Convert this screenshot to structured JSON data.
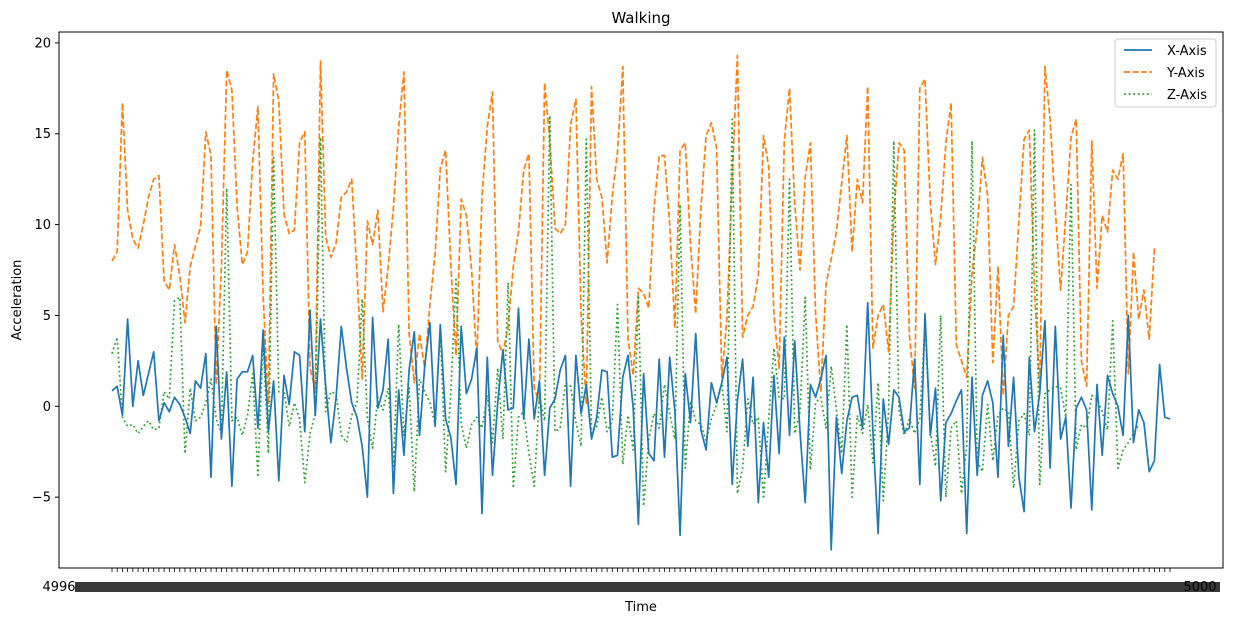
{
  "chart_data": {
    "type": "line",
    "title": "Walking",
    "xlabel": "Time",
    "ylabel": "Acceleration",
    "ylim": [
      -8.9,
      20.6
    ],
    "yticks": [
      -5,
      0,
      5,
      10,
      15,
      20
    ],
    "grid": false,
    "legend_position": "top-right",
    "x_tick_labels_overlapping": true,
    "x_first_label": "4996",
    "x_last_label": "5000",
    "series": [
      {
        "name": "X-Axis",
        "color": "#1f77b4",
        "style": "solid",
        "values": [
          0.85,
          1.1,
          -0.5,
          4.8,
          0.0,
          2.5,
          0.6,
          1.8,
          3.0,
          -0.8,
          0.2,
          -0.3,
          0.5,
          0.1,
          -0.6,
          -1.5,
          1.4,
          1.0,
          2.9,
          -3.9,
          4.4,
          -1.8,
          1.9,
          -4.4,
          1.5,
          1.9,
          1.9,
          2.8,
          -1.2,
          4.2,
          -1.4,
          1.4,
          -4.1,
          1.7,
          0.1,
          3.0,
          2.8,
          -1.4,
          5.3,
          -0.5,
          4.8,
          1.1,
          -2.0,
          0.5,
          4.4,
          2.1,
          0.2,
          -0.6,
          -2.2,
          -5.0,
          4.9,
          -0.1,
          0.9,
          3.7,
          -4.8,
          0.9,
          -2.7,
          2.0,
          4.1,
          -1.6,
          2.2,
          4.6,
          -1.1,
          4.5,
          -0.7,
          -1.7,
          -4.3,
          4.4,
          0.7,
          1.5,
          3.2,
          -5.9,
          2.7,
          -3.8,
          0.2,
          3.1,
          -0.2,
          -0.1,
          5.4,
          -0.7,
          3.7,
          -0.7,
          1.4,
          -3.8,
          -0.1,
          0.4,
          2.0,
          2.8,
          -4.4,
          2.8,
          -0.4,
          1.2,
          -1.8,
          -0.6,
          2.0,
          1.9,
          -2.8,
          -2.7,
          1.6,
          2.8,
          -0.1,
          -6.5,
          1.8,
          -2.6,
          -3.0,
          2.6,
          -2.8,
          2.7,
          -0.3,
          -7.1,
          1.8,
          -0.9,
          4.0,
          -1.3,
          -2.4,
          1.3,
          0.2,
          1.3,
          2.7,
          -4.3,
          0.3,
          2.6,
          -2.2,
          1.6,
          -5.3,
          -0.9,
          -3.9,
          1.7,
          -2.6,
          3.8,
          -1.6,
          3.6,
          -1.4,
          -5.3,
          1.2,
          0.5,
          1.5,
          2.8,
          -7.9,
          -0.6,
          -3.7,
          -0.8,
          0.5,
          0.6,
          -1.2,
          5.7,
          -1.4,
          -7.0,
          0.4,
          -2.1,
          0.9,
          0.5,
          -1.4,
          -1.2,
          2.6,
          -4.3,
          5.1,
          -1.6,
          1.0,
          -5.2,
          -0.9,
          -0.4,
          0.3,
          0.9,
          -7.0,
          1.6,
          -3.8,
          0.6,
          1.4,
          0.2,
          -3.9,
          3.9,
          -2.2,
          1.6,
          -3.9,
          -5.8,
          2.7,
          -1.4,
          0.7,
          4.7,
          -3.4,
          4.4,
          -1.8,
          -0.6,
          -5.6,
          -0.1,
          0.5,
          -0.2,
          -5.7,
          1.2,
          -2.7,
          1.7,
          0.7,
          0.0,
          -1.6,
          5.0,
          -2.0,
          -0.2,
          -0.9,
          -3.6,
          -3.0,
          2.3,
          -0.6,
          -0.7
        ]
      },
      {
        "name": "Y-Axis",
        "color": "#ff7f0e",
        "style": "dashed",
        "values": [
          8.0,
          8.5,
          16.7,
          10.8,
          9.2,
          8.7,
          10.0,
          11.5,
          12.5,
          12.7,
          6.9,
          6.4,
          8.9,
          7.2,
          4.6,
          7.7,
          8.8,
          9.9,
          15.1,
          13.8,
          1.2,
          7.7,
          18.5,
          17.4,
          11.0,
          7.8,
          8.5,
          13.5,
          16.5,
          6.1,
          0.1,
          18.3,
          16.8,
          10.6,
          9.5,
          9.7,
          14.5,
          15.1,
          2.1,
          0.9,
          19.0,
          9.3,
          8.2,
          9.0,
          11.5,
          11.8,
          12.5,
          7.3,
          1.5,
          10.2,
          8.9,
          10.8,
          5.2,
          7.7,
          10.9,
          15.4,
          18.4,
          4.0,
          1.3,
          4.0,
          2.1,
          5.6,
          8.4,
          13.1,
          14.1,
          7.8,
          2.8,
          11.4,
          10.5,
          7.5,
          2.5,
          11.6,
          15.4,
          17.3,
          3.6,
          2.9,
          4.4,
          7.7,
          9.6,
          13.0,
          13.9,
          1.0,
          0.2,
          17.8,
          14.6,
          9.8,
          9.5,
          10.0,
          15.5,
          16.9,
          5.0,
          0.1,
          17.6,
          12.5,
          11.5,
          7.9,
          11.6,
          14.0,
          18.7,
          3.7,
          1.7,
          6.5,
          6.2,
          5.4,
          10.9,
          13.8,
          13.8,
          10.0,
          4.3,
          14.1,
          14.5,
          8.9,
          5.1,
          10.9,
          14.9,
          15.6,
          14.2,
          1.6,
          4.9,
          12.6,
          19.3,
          3.8,
          5.0,
          5.5,
          7.2,
          14.9,
          13.2,
          5.1,
          2.1,
          14.6,
          17.5,
          11.2,
          7.5,
          12.6,
          14.5,
          5.1,
          0.8,
          6.7,
          8.1,
          9.6,
          12.3,
          14.9,
          8.5,
          12.5,
          11.2,
          17.6,
          3.2,
          5.0,
          5.6,
          3.0,
          10.5,
          14.5,
          14.1,
          3.9,
          1.0,
          17.5,
          18.0,
          11.2,
          7.8,
          10.4,
          14.5,
          16.7,
          3.4,
          2.5,
          1.6,
          7.3,
          9.8,
          13.7,
          11.6,
          2.4,
          7.7,
          0.6,
          5.0,
          5.5,
          10.2,
          14.7,
          15.2,
          6.4,
          0.9,
          18.7,
          15.8,
          10.8,
          6.4,
          10.5,
          14.8,
          15.8,
          2.5,
          1.1,
          14.6,
          6.5,
          10.5,
          9.6,
          13.0,
          12.5,
          13.9,
          1.8,
          8.5,
          4.8,
          6.4,
          3.7,
          8.7
        ]
      },
      {
        "name": "Z-Axis",
        "color": "#2ca02c",
        "style": "dotted",
        "values": [
          2.9,
          3.8,
          -0.6,
          -1.1,
          -1.0,
          -1.5,
          -1.1,
          -0.8,
          -1.3,
          -1.2,
          0.8,
          0.4,
          5.8,
          6.0,
          -2.6,
          1.0,
          -0.8,
          -0.6,
          0.2,
          1.5,
          -0.7,
          -1.5,
          12.0,
          -0.8,
          -0.6,
          -1.6,
          -0.5,
          1.8,
          -3.9,
          3.6,
          -2.6,
          13.7,
          0.8,
          0.9,
          -1.1,
          0.2,
          -0.7,
          -4.2,
          -1.5,
          -0.4,
          14.8,
          -0.3,
          0.8,
          0.7,
          -1.6,
          -2.0,
          -0.5,
          0.2,
          5.9,
          -0.7,
          -2.3,
          0.5,
          -0.2,
          1.0,
          -3.3,
          4.5,
          -1.6,
          1.0,
          -4.7,
          1.5,
          0.8,
          0.2,
          -1.0,
          4.2,
          -3.6,
          0.7,
          7.1,
          -1.0,
          -2.3,
          -1.0,
          -0.6,
          -1.2,
          0.6,
          -2.0,
          2.1,
          -1.8,
          6.8,
          -4.5,
          -0.6,
          -0.3,
          -2.6,
          -4.4,
          0.6,
          -0.8,
          16.0,
          -1.4,
          -1.2,
          1.3,
          1.1,
          -0.9,
          -2.2,
          14.7,
          -1.5,
          -1.1,
          0.5,
          -1.4,
          -0.8,
          5.6,
          -3.2,
          -0.5,
          -2.4,
          6.1,
          -5.5,
          -1.8,
          -0.4,
          -1.2,
          1.2,
          -0.4,
          -1.8,
          11.1,
          -3.4,
          0.3,
          -0.8,
          -1.0,
          -1.9,
          -0.7,
          0.1,
          1.3,
          -1.4,
          15.8,
          -4.8,
          -3.4,
          0.4,
          -1.0,
          -0.6,
          -5.1,
          -0.7,
          3.2,
          0.5,
          0.4,
          12.5,
          -1.5,
          -0.3,
          6.0,
          -3.5,
          0.2,
          0.5,
          -1.2,
          2.2,
          -0.2,
          -2.6,
          4.5,
          -5.0,
          -0.5,
          -1.5,
          0.1,
          -3.1,
          1.3,
          -5.2,
          -0.2,
          14.6,
          -0.2,
          -1.6,
          -0.7,
          -1.5,
          -0.7,
          4.5,
          -1.4,
          -3.3,
          5.0,
          -5.0,
          -1.2,
          -0.8,
          -4.8,
          -2.2,
          14.6,
          -3.0,
          -3.6,
          0.1,
          -3.0,
          -0.5,
          -0.1,
          -0.3,
          -4.5,
          -0.8,
          -0.4,
          -1.6,
          15.2,
          -4.3,
          0.7,
          0.9,
          1.1,
          1.0,
          -0.6,
          12.2,
          -2.4,
          -1.0,
          -1.2,
          0.6,
          0.4,
          -0.3,
          -1.3,
          4.7,
          -3.4,
          -2.4,
          -2.0,
          -1.5,
          -1.0
        ]
      }
    ]
  }
}
